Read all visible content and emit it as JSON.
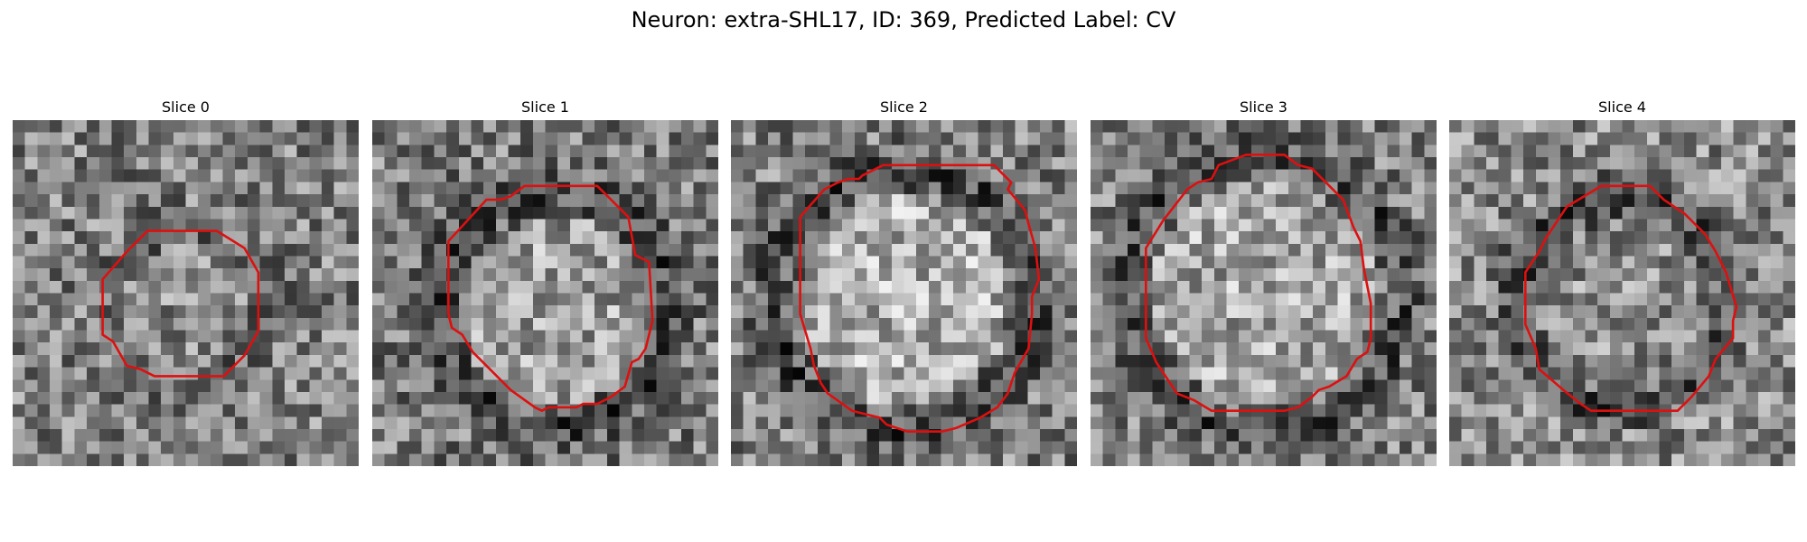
{
  "figure": {
    "title": "Neuron: extra-SHL17, ID: 369, Predicted Label: CV"
  },
  "panels": [
    {
      "title": "Slice 0",
      "seed": 11,
      "ring_radius": 0.22,
      "ring_center": [
        0.5,
        0.54
      ],
      "center_brightness": 0.05,
      "ring_darkness": 0.1,
      "outer_darkness": 0.0,
      "contour": [
        [
          0.39,
          0.32
        ],
        [
          0.59,
          0.32
        ],
        [
          0.67,
          0.37
        ],
        [
          0.71,
          0.44
        ],
        [
          0.71,
          0.61
        ],
        [
          0.67,
          0.68
        ],
        [
          0.61,
          0.74
        ],
        [
          0.41,
          0.74
        ],
        [
          0.37,
          0.72
        ],
        [
          0.33,
          0.71
        ],
        [
          0.29,
          0.64
        ],
        [
          0.26,
          0.62
        ],
        [
          0.26,
          0.46
        ],
        [
          0.33,
          0.38
        ]
      ]
    },
    {
      "title": "Slice 1",
      "seed": 23,
      "ring_radius": 0.34,
      "ring_center": [
        0.53,
        0.55
      ],
      "center_brightness": 0.12,
      "ring_darkness": 0.22,
      "outer_darkness": 0.02,
      "contour": [
        [
          0.44,
          0.19
        ],
        [
          0.65,
          0.19
        ],
        [
          0.69,
          0.23
        ],
        [
          0.74,
          0.28
        ],
        [
          0.76,
          0.39
        ],
        [
          0.8,
          0.41
        ],
        [
          0.81,
          0.58
        ],
        [
          0.79,
          0.66
        ],
        [
          0.77,
          0.69
        ],
        [
          0.75,
          0.7
        ],
        [
          0.73,
          0.77
        ],
        [
          0.69,
          0.8
        ],
        [
          0.65,
          0.82
        ],
        [
          0.61,
          0.82
        ],
        [
          0.59,
          0.83
        ],
        [
          0.51,
          0.83
        ],
        [
          0.49,
          0.84
        ],
        [
          0.47,
          0.83
        ],
        [
          0.4,
          0.78
        ],
        [
          0.29,
          0.67
        ],
        [
          0.26,
          0.62
        ],
        [
          0.23,
          0.6
        ],
        [
          0.22,
          0.56
        ],
        [
          0.22,
          0.35
        ],
        [
          0.33,
          0.23
        ],
        [
          0.37,
          0.23
        ],
        [
          0.4,
          0.22
        ]
      ]
    },
    {
      "title": "Slice 2",
      "seed": 37,
      "ring_radius": 0.38,
      "ring_center": [
        0.5,
        0.52
      ],
      "center_brightness": 0.18,
      "ring_darkness": 0.22,
      "outer_darkness": 0.0,
      "contour": [
        [
          0.38,
          0.16
        ],
        [
          0.44,
          0.13
        ],
        [
          0.76,
          0.13
        ],
        [
          0.81,
          0.18
        ],
        [
          0.8,
          0.2
        ],
        [
          0.85,
          0.26
        ],
        [
          0.86,
          0.3
        ],
        [
          0.88,
          0.37
        ],
        [
          0.89,
          0.46
        ],
        [
          0.87,
          0.51
        ],
        [
          0.87,
          0.56
        ],
        [
          0.86,
          0.66
        ],
        [
          0.82,
          0.73
        ],
        [
          0.8,
          0.79
        ],
        [
          0.77,
          0.83
        ],
        [
          0.72,
          0.86
        ],
        [
          0.65,
          0.89
        ],
        [
          0.61,
          0.9
        ],
        [
          0.51,
          0.9
        ],
        [
          0.45,
          0.88
        ],
        [
          0.43,
          0.86
        ],
        [
          0.35,
          0.84
        ],
        [
          0.28,
          0.79
        ],
        [
          0.26,
          0.76
        ],
        [
          0.24,
          0.71
        ],
        [
          0.23,
          0.66
        ],
        [
          0.2,
          0.56
        ],
        [
          0.2,
          0.28
        ],
        [
          0.27,
          0.2
        ],
        [
          0.31,
          0.18
        ],
        [
          0.34,
          0.17
        ],
        [
          0.37,
          0.17
        ]
      ]
    },
    {
      "title": "Slice 3",
      "seed": 53,
      "ring_radius": 0.4,
      "ring_center": [
        0.5,
        0.5
      ],
      "center_brightness": 0.15,
      "ring_darkness": 0.2,
      "outer_darkness": 0.0,
      "contour": [
        [
          0.37,
          0.13
        ],
        [
          0.45,
          0.1
        ],
        [
          0.56,
          0.1
        ],
        [
          0.6,
          0.13
        ],
        [
          0.64,
          0.14
        ],
        [
          0.7,
          0.2
        ],
        [
          0.73,
          0.23
        ],
        [
          0.76,
          0.31
        ],
        [
          0.78,
          0.35
        ],
        [
          0.79,
          0.43
        ],
        [
          0.81,
          0.53
        ],
        [
          0.81,
          0.63
        ],
        [
          0.8,
          0.67
        ],
        [
          0.77,
          0.69
        ],
        [
          0.74,
          0.74
        ],
        [
          0.69,
          0.77
        ],
        [
          0.66,
          0.78
        ],
        [
          0.64,
          0.8
        ],
        [
          0.6,
          0.83
        ],
        [
          0.56,
          0.84
        ],
        [
          0.46,
          0.84
        ],
        [
          0.35,
          0.84
        ],
        [
          0.3,
          0.81
        ],
        [
          0.25,
          0.79
        ],
        [
          0.21,
          0.73
        ],
        [
          0.19,
          0.7
        ],
        [
          0.16,
          0.63
        ],
        [
          0.16,
          0.37
        ],
        [
          0.21,
          0.29
        ],
        [
          0.28,
          0.2
        ],
        [
          0.31,
          0.18
        ],
        [
          0.35,
          0.17
        ]
      ]
    },
    {
      "title": "Slice 4",
      "seed": 71,
      "ring_radius": 0.3,
      "ring_center": [
        0.5,
        0.53
      ],
      "center_brightness": 0.05,
      "ring_darkness": 0.2,
      "outer_darkness": -0.04,
      "contour": [
        [
          0.44,
          0.19
        ],
        [
          0.58,
          0.19
        ],
        [
          0.62,
          0.23
        ],
        [
          0.68,
          0.27
        ],
        [
          0.74,
          0.33
        ],
        [
          0.77,
          0.38
        ],
        [
          0.8,
          0.44
        ],
        [
          0.83,
          0.54
        ],
        [
          0.82,
          0.58
        ],
        [
          0.82,
          0.63
        ],
        [
          0.77,
          0.69
        ],
        [
          0.75,
          0.74
        ],
        [
          0.7,
          0.8
        ],
        [
          0.66,
          0.84
        ],
        [
          0.41,
          0.84
        ],
        [
          0.38,
          0.82
        ],
        [
          0.33,
          0.78
        ],
        [
          0.26,
          0.72
        ],
        [
          0.25,
          0.66
        ],
        [
          0.22,
          0.59
        ],
        [
          0.22,
          0.44
        ],
        [
          0.26,
          0.38
        ],
        [
          0.28,
          0.34
        ],
        [
          0.32,
          0.28
        ],
        [
          0.34,
          0.25
        ],
        [
          0.39,
          0.22
        ]
      ]
    }
  ],
  "colors": {
    "contour": "#dd1010",
    "background": "#ffffff",
    "text": "#000000"
  }
}
